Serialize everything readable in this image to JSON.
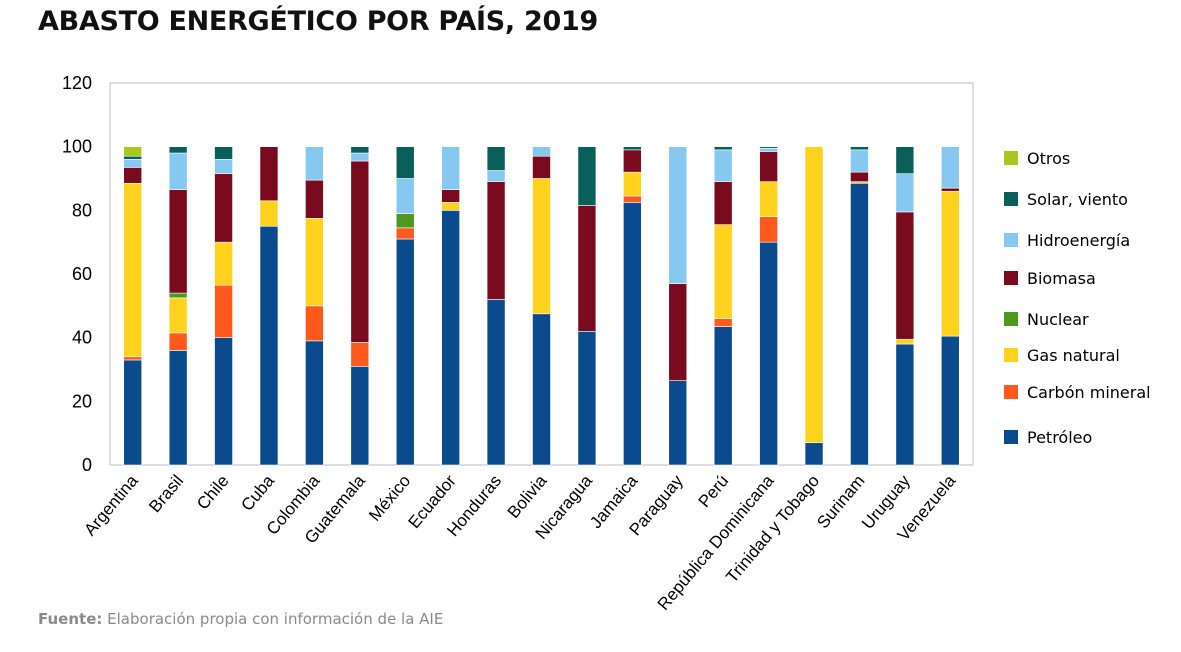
{
  "title": "ABASTO ENERGÉTICO POR PAÍS, 2019",
  "source": {
    "prefix": "Fuente:",
    "text": "Elaboración propia con información de la AIE"
  },
  "chart_data": {
    "type": "bar",
    "stacked": true,
    "title": "ABASTO ENERGÉTICO POR PAÍS, 2019",
    "xlabel": "",
    "ylabel": "",
    "ylim": [
      0,
      120
    ],
    "yticks": [
      0,
      20,
      40,
      60,
      80,
      100,
      120
    ],
    "grid": false,
    "legend_position": "right",
    "categories": [
      "Argentina",
      "Brasil",
      "Chile",
      "Cuba",
      "Colombia",
      "Guatemala",
      "México",
      "Ecuador",
      "Honduras",
      "Bolivia",
      "Nicaragua",
      "Jamaica",
      "Paraguay",
      "Perú",
      "República Dominicana",
      "Trinidad y Tobago",
      "Surinam",
      "Uruguay",
      "Venezuela"
    ],
    "series": [
      {
        "name": "Petróleo",
        "color": "#0B4A8C",
        "values": [
          33,
          36,
          40,
          75,
          39,
          31,
          71,
          80,
          52,
          47.5,
          42,
          82.5,
          26.5,
          43.5,
          70,
          7,
          88.5,
          38,
          40.5
        ]
      },
      {
        "name": "Carbón mineral",
        "color": "#FF5A1E",
        "values": [
          1,
          5.5,
          16.5,
          0,
          11,
          7.5,
          3.5,
          0,
          0,
          0,
          0,
          2,
          0,
          2.5,
          8,
          0,
          0,
          0,
          0
        ]
      },
      {
        "name": "Gas natural",
        "color": "#FFD21E",
        "values": [
          54.5,
          11,
          13.5,
          8,
          27.5,
          0,
          0,
          2.5,
          0,
          42.5,
          0,
          7.5,
          0,
          29.5,
          11,
          93,
          0.5,
          1.5,
          45.5
        ]
      },
      {
        "name": "Nuclear",
        "color": "#4B9A1E",
        "values": [
          0,
          1.5,
          0,
          0,
          0,
          0,
          4.5,
          0,
          0,
          0,
          0,
          0,
          0,
          0,
          0,
          0,
          0,
          0,
          0
        ]
      },
      {
        "name": "Biomasa",
        "color": "#7A0A1E",
        "values": [
          5,
          32.5,
          21.5,
          17,
          12,
          57,
          0,
          4,
          37,
          7,
          39.5,
          7,
          30.5,
          13.5,
          9.5,
          0,
          3,
          40,
          1
        ]
      },
      {
        "name": "Hidroenergía",
        "color": "#87C8F0",
        "values": [
          2.5,
          11.5,
          4.5,
          0,
          10.5,
          2.5,
          11,
          13.5,
          3.5,
          3,
          0,
          0,
          43,
          10,
          1,
          0,
          7,
          12,
          13
        ]
      },
      {
        "name": "Solar, viento",
        "color": "#0B5F5A",
        "values": [
          1,
          2,
          4,
          0,
          0,
          2,
          10,
          0,
          7.5,
          0,
          18.5,
          1,
          0,
          1,
          0.5,
          0,
          1,
          8.5,
          0
        ]
      },
      {
        "name": "Otros",
        "color": "#A8C81E",
        "values": [
          3,
          0,
          0,
          0,
          0,
          0,
          0,
          0,
          0,
          0,
          0,
          0,
          0,
          0,
          0,
          0,
          0,
          0,
          0
        ]
      }
    ],
    "legend_order": [
      "Otros",
      "Solar, viento",
      "Hidroenergía",
      "Biomasa",
      "Nuclear",
      "Gas natural",
      "Carbón mineral",
      "Petróleo"
    ]
  }
}
